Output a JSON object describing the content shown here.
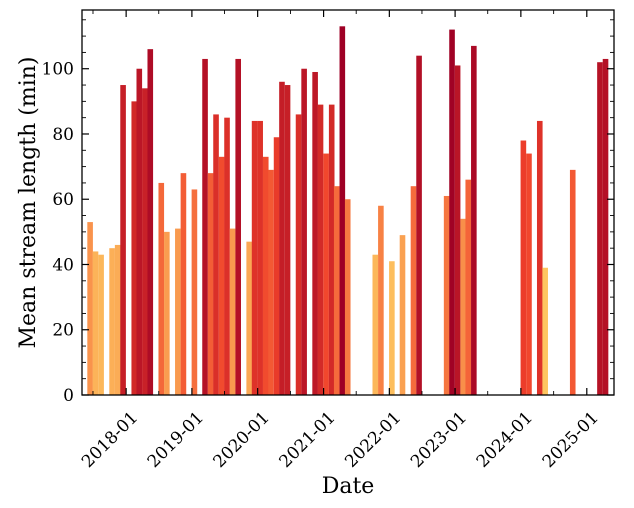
{
  "chart_data": {
    "type": "bar",
    "xlabel": "Date",
    "ylabel": "Mean stream length (min)",
    "ylim": [
      0,
      118
    ],
    "xlim": [
      "2017-05-01",
      "2025-06-01"
    ],
    "yticks": [
      0,
      20,
      40,
      60,
      80,
      100
    ],
    "xticks": [
      "2018-01",
      "2019-01",
      "2020-01",
      "2021-01",
      "2022-01",
      "2023-01",
      "2024-01",
      "2025-01"
    ],
    "grid": false,
    "legend": "none",
    "color_scale": {
      "low": "#fec560",
      "mid": "#f0402a",
      "high": "#9e0025",
      "vmin": 39,
      "vmax": 113
    },
    "x": [
      "2017-06",
      "2017-07",
      "2017-08",
      "2017-09",
      "2017-10",
      "2017-11",
      "2017-12",
      "2018-01",
      "2018-02",
      "2018-03",
      "2018-04",
      "2018-05",
      "2018-06",
      "2018-07",
      "2018-08",
      "2018-09",
      "2018-10",
      "2018-11",
      "2018-12",
      "2019-01",
      "2019-02",
      "2019-03",
      "2019-04",
      "2019-05",
      "2019-06",
      "2019-07",
      "2019-08",
      "2019-09",
      "2019-10",
      "2019-11",
      "2019-12",
      "2020-01",
      "2020-02",
      "2020-03",
      "2020-04",
      "2020-05",
      "2020-06",
      "2020-07",
      "2020-08",
      "2020-09",
      "2020-10",
      "2020-11",
      "2020-12",
      "2021-01",
      "2021-02",
      "2021-03",
      "2021-04",
      "2021-05",
      "2021-06",
      "2021-07",
      "2021-08",
      "2021-09",
      "2021-10",
      "2021-11",
      "2021-12",
      "2022-01",
      "2022-02",
      "2022-03",
      "2022-04",
      "2022-05",
      "2022-06",
      "2022-07",
      "2022-08",
      "2022-09",
      "2022-10",
      "2022-11",
      "2022-12",
      "2023-01",
      "2023-02",
      "2023-03",
      "2023-04",
      "2023-05",
      "2023-06",
      "2023-07",
      "2023-08",
      "2023-09",
      "2023-10",
      "2023-11",
      "2023-12",
      "2024-01",
      "2024-02",
      "2024-03",
      "2024-04",
      "2024-05",
      "2024-06",
      "2024-07",
      "2024-08",
      "2024-09",
      "2024-10",
      "2024-11",
      "2024-12",
      "2025-01",
      "2025-02",
      "2025-03",
      "2025-04"
    ],
    "values": [
      53,
      44,
      43,
      0,
      45,
      46,
      95,
      0,
      90,
      100,
      94,
      106,
      0,
      65,
      50,
      0,
      51,
      68,
      0,
      63,
      0,
      103,
      68,
      86,
      73,
      85,
      51,
      103,
      0,
      47,
      84,
      84,
      73,
      69,
      79,
      96,
      95,
      0,
      86,
      100,
      0,
      99,
      89,
      74,
      89,
      64,
      113,
      60,
      0,
      0,
      0,
      0,
      43,
      58,
      0,
      41,
      0,
      49,
      0,
      64,
      104,
      0,
      0,
      0,
      0,
      61,
      112,
      101,
      54,
      66,
      107,
      0,
      0,
      0,
      0,
      0,
      0,
      0,
      0,
      78,
      74,
      0,
      84,
      39,
      0,
      0,
      0,
      0,
      69,
      0,
      0,
      0,
      0,
      102,
      103
    ]
  }
}
